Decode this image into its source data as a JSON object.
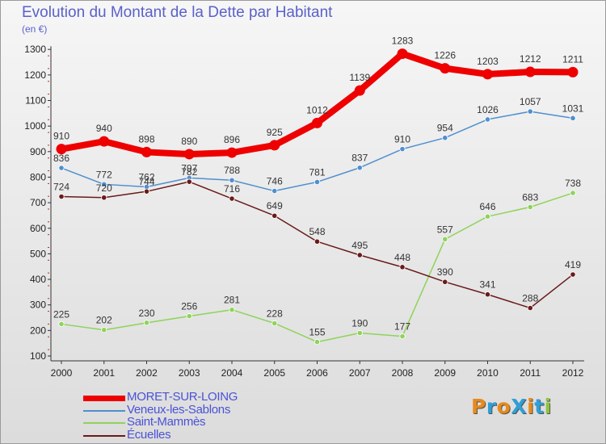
{
  "chart_data": {
    "type": "line",
    "title": "Evolution du Montant de la Dette par Habitant",
    "subtitle": "(en €)",
    "x": [
      "2000",
      "2001",
      "2002",
      "2003",
      "2004",
      "2005",
      "2006",
      "2007",
      "2008",
      "2009",
      "2010",
      "2011",
      "2012"
    ],
    "yticks": [
      100,
      200,
      300,
      400,
      500,
      600,
      700,
      800,
      900,
      1000,
      1100,
      1200,
      1300
    ],
    "ylim": [
      100,
      1300
    ],
    "grid": false,
    "legend_position": "bottom-left",
    "series": [
      {
        "name": "MORET-SUR-LOING",
        "color": "#ee0000",
        "values": [
          910,
          940,
          898,
          890,
          896,
          925,
          1012,
          1139,
          1283,
          1226,
          1203,
          1212,
          1211
        ]
      },
      {
        "name": "Veneux-les-Sablons",
        "color": "#4f8fcf",
        "values": [
          836,
          772,
          762,
          797,
          788,
          746,
          781,
          837,
          910,
          954,
          1026,
          1057,
          1031
        ]
      },
      {
        "name": "Saint-Mammès",
        "color": "#8fd35a",
        "values": [
          225,
          202,
          230,
          256,
          281,
          228,
          155,
          190,
          177,
          557,
          646,
          683,
          738
        ]
      },
      {
        "name": "Écuelles",
        "color": "#6b1a1a",
        "values": [
          724,
          720,
          744,
          782,
          716,
          649,
          548,
          495,
          448,
          390,
          341,
          288,
          419
        ]
      }
    ]
  },
  "brand": {
    "text": "ProXiti",
    "colors": [
      "#e88a1a",
      "#2f9fd8",
      "#e88a1a",
      "#2f9fd8",
      "#e88a1a",
      "#2f9fd8",
      "#8cc63f"
    ]
  }
}
